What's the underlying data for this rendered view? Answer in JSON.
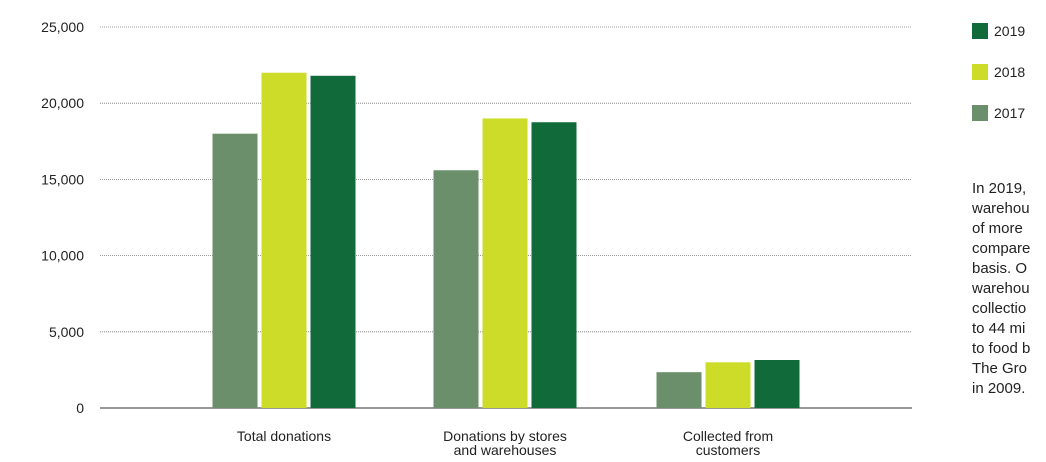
{
  "chart_data": {
    "type": "bar",
    "categories": [
      [
        "Total donations"
      ],
      [
        "Donations by stores",
        "and warehouses"
      ],
      [
        "Collected from",
        "customers"
      ]
    ],
    "series": [
      {
        "name": "2017",
        "color": "#6a8f6a",
        "values": [
          18000,
          15600,
          2350
        ]
      },
      {
        "name": "2018",
        "color": "#cddc29",
        "values": [
          22000,
          19000,
          3000
        ]
      },
      {
        "name": "2019",
        "color": "#116a3a",
        "values": [
          21800,
          18750,
          3150
        ]
      }
    ],
    "legend_order": [
      "2019",
      "2018",
      "2017"
    ],
    "ylim": [
      0,
      25000
    ],
    "yticks": [
      0,
      5000,
      10000,
      15000,
      20000,
      25000
    ],
    "ytick_labels": [
      "0",
      "5,000",
      "10,000",
      "15,000",
      "20,000",
      "25,000"
    ],
    "grid": true,
    "legend_position": "right"
  },
  "side_text": {
    "lines": [
      "In 2019,",
      "warehou",
      "of more",
      "compare",
      "basis. O",
      "warehou",
      "collectio",
      "to 44 mi",
      "to food b",
      "The Gro",
      "in 2009."
    ]
  }
}
